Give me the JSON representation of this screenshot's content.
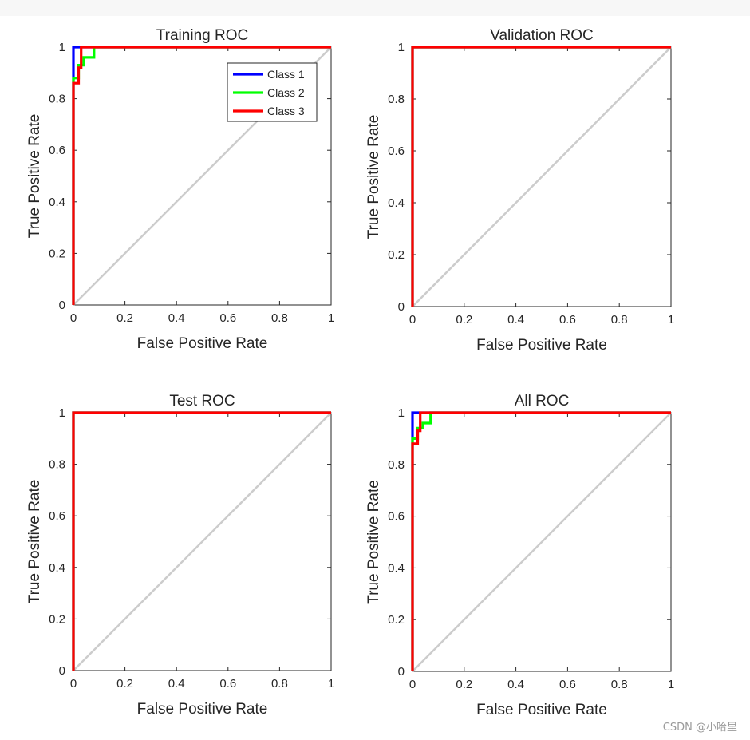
{
  "colors": {
    "class1": "#0000ff",
    "class2": "#00ff00",
    "class3": "#ff0000",
    "diagonal": "#cccccc"
  },
  "chart_data": [
    {
      "type": "line",
      "title": "Training ROC",
      "xlabel": "False Positive Rate",
      "ylabel": "True Positive Rate",
      "xlim": [
        0,
        1
      ],
      "ylim": [
        0,
        1
      ],
      "xticks": [
        "0",
        "0.2",
        "0.4",
        "0.6",
        "0.8",
        "1"
      ],
      "yticks": [
        "0",
        "0.2",
        "0.4",
        "0.6",
        "0.8",
        "1"
      ],
      "legend": {
        "location": "top-right",
        "entries": [
          "Class 1",
          "Class 2",
          "Class 3"
        ]
      },
      "series": [
        {
          "name": "Class 1",
          "color": "#0000ff",
          "x": [
            0,
            0,
            0,
            0.02,
            1
          ],
          "y": [
            0,
            0.93,
            1,
            1,
            1
          ]
        },
        {
          "name": "Class 2",
          "color": "#00ff00",
          "x": [
            0,
            0,
            0.02,
            0.02,
            0.04,
            0.04,
            0.08,
            0.08,
            1
          ],
          "y": [
            0,
            0.88,
            0.88,
            0.93,
            0.93,
            0.96,
            0.96,
            1,
            1
          ]
        },
        {
          "name": "Class 3",
          "color": "#ff0000",
          "x": [
            0,
            0,
            0.02,
            0.02,
            0.03,
            0.03,
            1
          ],
          "y": [
            0,
            0.86,
            0.86,
            0.92,
            0.92,
            1,
            1
          ]
        }
      ]
    },
    {
      "type": "line",
      "title": "Validation ROC",
      "xlabel": "False Positive Rate",
      "ylabel": "True Positive Rate",
      "xlim": [
        0,
        1
      ],
      "ylim": [
        0,
        1
      ],
      "xticks": [
        "0",
        "0.2",
        "0.4",
        "0.6",
        "0.8",
        "1"
      ],
      "yticks": [
        "0",
        "0.2",
        "0.4",
        "0.6",
        "0.8",
        "1"
      ],
      "series": [
        {
          "name": "Class 1",
          "color": "#0000ff",
          "x": [
            0,
            0,
            1
          ],
          "y": [
            0,
            1,
            1
          ]
        },
        {
          "name": "Class 2",
          "color": "#00ff00",
          "x": [
            0,
            0,
            1
          ],
          "y": [
            0,
            1,
            1
          ]
        },
        {
          "name": "Class 3",
          "color": "#ff0000",
          "x": [
            0,
            0,
            1
          ],
          "y": [
            0,
            1,
            1
          ]
        }
      ]
    },
    {
      "type": "line",
      "title": "Test ROC",
      "xlabel": "False Positive Rate",
      "ylabel": "True Positive Rate",
      "xlim": [
        0,
        1
      ],
      "ylim": [
        0,
        1
      ],
      "xticks": [
        "0",
        "0.2",
        "0.4",
        "0.6",
        "0.8",
        "1"
      ],
      "yticks": [
        "0",
        "0.2",
        "0.4",
        "0.6",
        "0.8",
        "1"
      ],
      "series": [
        {
          "name": "Class 1",
          "color": "#0000ff",
          "x": [
            0,
            0,
            1
          ],
          "y": [
            0,
            1,
            1
          ]
        },
        {
          "name": "Class 2",
          "color": "#00ff00",
          "x": [
            0,
            0,
            1
          ],
          "y": [
            0,
            1,
            1
          ]
        },
        {
          "name": "Class 3",
          "color": "#ff0000",
          "x": [
            0,
            0,
            1
          ],
          "y": [
            0,
            1,
            1
          ]
        }
      ]
    },
    {
      "type": "line",
      "title": "All ROC",
      "xlabel": "False Positive Rate",
      "ylabel": "True Positive Rate",
      "xlim": [
        0,
        1
      ],
      "ylim": [
        0,
        1
      ],
      "xticks": [
        "0",
        "0.2",
        "0.4",
        "0.6",
        "0.8",
        "1"
      ],
      "yticks": [
        "0",
        "0.2",
        "0.4",
        "0.6",
        "0.8",
        "1"
      ],
      "series": [
        {
          "name": "Class 1",
          "color": "#0000ff",
          "x": [
            0,
            0,
            0,
            0.02,
            1
          ],
          "y": [
            0,
            0.95,
            1,
            1,
            1
          ]
        },
        {
          "name": "Class 2",
          "color": "#00ff00",
          "x": [
            0,
            0,
            0.02,
            0.02,
            0.04,
            0.04,
            0.07,
            0.07,
            1
          ],
          "y": [
            0,
            0.9,
            0.9,
            0.94,
            0.94,
            0.96,
            0.96,
            1,
            1
          ]
        },
        {
          "name": "Class 3",
          "color": "#ff0000",
          "x": [
            0,
            0,
            0.02,
            0.02,
            0.03,
            0.03,
            1
          ],
          "y": [
            0,
            0.88,
            0.88,
            0.93,
            0.93,
            1,
            1
          ]
        }
      ]
    }
  ],
  "watermark": "CSDN @小哈里"
}
